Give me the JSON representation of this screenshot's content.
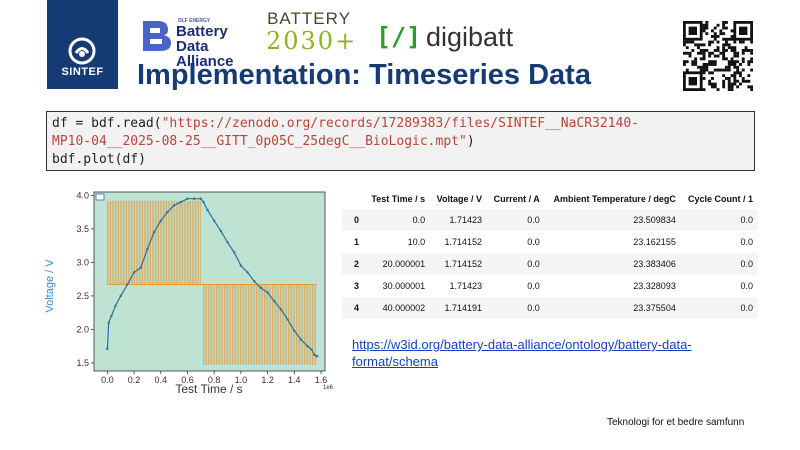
{
  "logos": {
    "sintef": "SINTEF",
    "bda_small": "DLF ENERGY",
    "bda_line1": "Battery",
    "bda_line2": "Data Alliance",
    "battery2030_top": "BATTERY",
    "battery2030_bottom": "2030+",
    "digibatt_icon": "[/]",
    "digibatt_text": "digibatt"
  },
  "title": "Implementation: Timeseries Data",
  "code": {
    "line1_prefix": "df = bdf.read(",
    "line1_string": "\"https://zenodo.org/records/17289383/files/SINTEF__NaCR32140-",
    "line2_string": "MP10-04__2025-08-25__GITT_0p05C_25degC__BioLogic.mpt\"",
    "line2_suffix": ")",
    "line3": "bdf.plot(df)"
  },
  "chart_data": {
    "type": "line",
    "xlabel": "Test Time / s",
    "ylabel": "Voltage / V",
    "x_multiplier_label": "1e6",
    "xlim": [
      -0.1,
      1.63
    ],
    "ylim": [
      1.38,
      4.05
    ],
    "x_ticks": [
      "0.0",
      "0.2",
      "0.4",
      "0.6",
      "0.8",
      "1.0",
      "1.2",
      "1.4",
      "1.6"
    ],
    "y_ticks": [
      "1.5",
      "2.0",
      "2.5",
      "3.0",
      "3.5",
      "4.0"
    ],
    "series": [
      {
        "color": "#2f6f9f",
        "x": [
          0.0,
          0.01,
          0.03,
          0.06,
          0.1,
          0.15,
          0.2,
          0.25,
          0.3,
          0.35,
          0.4,
          0.45,
          0.5,
          0.55,
          0.6,
          0.65,
          0.7,
          0.72,
          0.75,
          0.8,
          0.85,
          0.9,
          0.95,
          1.0,
          1.05,
          1.1,
          1.15,
          1.2,
          1.25,
          1.3,
          1.35,
          1.4,
          1.45,
          1.5,
          1.53,
          1.55,
          1.57
        ],
        "y": [
          1.71,
          2.1,
          2.2,
          2.35,
          2.5,
          2.67,
          2.85,
          2.92,
          3.2,
          3.45,
          3.62,
          3.75,
          3.85,
          3.9,
          3.95,
          3.95,
          3.95,
          3.9,
          3.78,
          3.62,
          3.47,
          3.3,
          3.15,
          2.95,
          2.85,
          2.72,
          2.62,
          2.55,
          2.42,
          2.3,
          2.15,
          1.98,
          1.85,
          1.75,
          1.7,
          1.62,
          1.6
        ]
      }
    ],
    "background_color": "#bfe3d3",
    "band_color": "#e59a3a"
  },
  "table": {
    "headers": [
      "",
      "Test Time / s",
      "Voltage / V",
      "Current / A",
      "Ambient Temperature / degC",
      "Cycle Count / 1"
    ],
    "rows": [
      [
        "0",
        "0.0",
        "1.71423",
        "0.0",
        "23.509834",
        "0.0"
      ],
      [
        "1",
        "10.0",
        "1.714152",
        "0.0",
        "23.162155",
        "0.0"
      ],
      [
        "2",
        "20.000001",
        "1.714152",
        "0.0",
        "23.383406",
        "0.0"
      ],
      [
        "3",
        "30.000001",
        "1.71423",
        "0.0",
        "23.328093",
        "0.0"
      ],
      [
        "4",
        "40.000002",
        "1.714191",
        "0.0",
        "23.375504",
        "0.0"
      ]
    ]
  },
  "link": "https://w3id.org/battery-data-alliance/ontology/battery-data-format/schema",
  "footer": "Teknologi for et bedre samfunn"
}
